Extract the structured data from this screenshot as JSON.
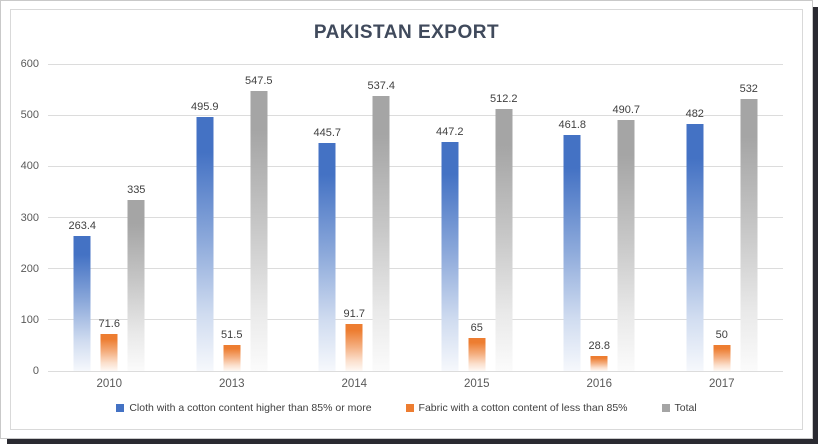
{
  "chart_data": {
    "type": "bar",
    "title": "PAKISTAN EXPORT",
    "categories": [
      "2010",
      "2013",
      "2014",
      "2015",
      "2016",
      "2017"
    ],
    "series": [
      {
        "name": "Cloth with a cotton content higher than 85% or more",
        "color": "#4472C4",
        "values": [
          263.4,
          495.9,
          445.7,
          447.2,
          461.8,
          482
        ]
      },
      {
        "name": "Fabric with a cotton content of less than 85%",
        "color": "#ED7D31",
        "values": [
          71.6,
          51.5,
          91.7,
          65,
          28.8,
          50
        ]
      },
      {
        "name": "Total",
        "color": "#A5A5A5",
        "values": [
          335,
          547.5,
          537.4,
          512.2,
          490.7,
          532
        ]
      }
    ],
    "xlabel": "",
    "ylabel": "",
    "ylim": [
      0,
      600
    ],
    "y_ticks": [
      0,
      100,
      200,
      300,
      400,
      500,
      600
    ],
    "grid": true,
    "legend_position": "bottom",
    "data_labels_visible": true
  }
}
